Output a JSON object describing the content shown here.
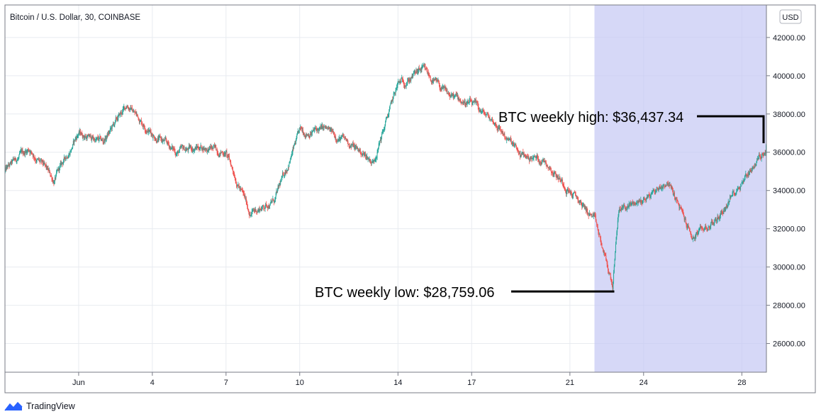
{
  "header": {
    "title": "Bitcoin / U.S. Dollar, 30, COINBASE",
    "currency": "USD"
  },
  "branding": {
    "name": "TradingView",
    "icon": "tradingview-logo-icon"
  },
  "colors": {
    "up": "#26a69a",
    "down": "#ef5350",
    "highlight": "#c5c8f3",
    "grid": "#e8ebf0",
    "border": "#787b86"
  },
  "chart_data": {
    "type": "candlestick",
    "interval": "30",
    "exchange": "COINBASE",
    "pair": "Bitcoin / U.S. Dollar",
    "x_tick_labels": [
      "Jun",
      "4",
      "7",
      "10",
      "14",
      "17",
      "21",
      "24",
      "28"
    ],
    "x_ticks": [
      {
        "label": "Jun",
        "date": "2021-06-01"
      },
      {
        "label": "4",
        "date": "2021-06-04"
      },
      {
        "label": "7",
        "date": "2021-06-07"
      },
      {
        "label": "10",
        "date": "2021-06-10"
      },
      {
        "label": "14",
        "date": "2021-06-14"
      },
      {
        "label": "17",
        "date": "2021-06-17"
      },
      {
        "label": "21",
        "date": "2021-06-21"
      },
      {
        "label": "24",
        "date": "2021-06-24"
      },
      {
        "label": "28",
        "date": "2021-06-28"
      }
    ],
    "y_tick_labels": [
      "26000.00",
      "28000.00",
      "30000.00",
      "32000.00",
      "34000.00",
      "36000.00",
      "38000.00",
      "40000.00",
      "42000.00"
    ],
    "x_range": [
      "2021-05-29",
      "2021-06-29"
    ],
    "y_range": [
      24500,
      43700
    ],
    "grid": true,
    "price_path": [
      {
        "date": "2021-05-29",
        "price": 35000
      },
      {
        "date": "2021-05-30",
        "price": 36200
      },
      {
        "date": "2021-05-31",
        "price": 34500
      },
      {
        "date": "2021-06-01",
        "price": 37000
      },
      {
        "date": "2021-06-02",
        "price": 36500
      },
      {
        "date": "2021-06-03",
        "price": 38500
      },
      {
        "date": "2021-06-04",
        "price": 37000
      },
      {
        "date": "2021-06-05",
        "price": 36000
      },
      {
        "date": "2021-06-06",
        "price": 36300
      },
      {
        "date": "2021-06-07",
        "price": 36000
      },
      {
        "date": "2021-06-08",
        "price": 32800
      },
      {
        "date": "2021-06-09",
        "price": 33500
      },
      {
        "date": "2021-06-10",
        "price": 37000
      },
      {
        "date": "2021-06-11",
        "price": 37200
      },
      {
        "date": "2021-06-12",
        "price": 36500
      },
      {
        "date": "2021-06-13",
        "price": 35500
      },
      {
        "date": "2021-06-14",
        "price": 39500
      },
      {
        "date": "2021-06-15",
        "price": 40300
      },
      {
        "date": "2021-06-16",
        "price": 39000
      },
      {
        "date": "2021-06-17",
        "price": 38500
      },
      {
        "date": "2021-06-18",
        "price": 37500
      },
      {
        "date": "2021-06-19",
        "price": 35800
      },
      {
        "date": "2021-06-20",
        "price": 35600
      },
      {
        "date": "2021-06-21",
        "price": 34000
      },
      {
        "date": "2021-06-22",
        "price": 32500
      },
      {
        "date": "2021-06-22T18:00",
        "price": 29000
      },
      {
        "date": "2021-06-23",
        "price": 33000
      },
      {
        "date": "2021-06-24",
        "price": 33500
      },
      {
        "date": "2021-06-25",
        "price": 34500
      },
      {
        "date": "2021-06-26",
        "price": 31500
      },
      {
        "date": "2021-06-27",
        "price": 32500
      },
      {
        "date": "2021-06-28",
        "price": 34500
      },
      {
        "date": "2021-06-29",
        "price": 36200
      }
    ],
    "highlight_range": [
      "2021-06-22",
      "2021-06-29"
    ],
    "annotations": [
      {
        "text": "BTC weekly high: $36,437.34",
        "price": 36437.34,
        "date": "2021-06-29"
      },
      {
        "text": "BTC weekly low: $28,759.06",
        "price": 28759.06,
        "date": "2021-06-22T18:00"
      }
    ]
  }
}
